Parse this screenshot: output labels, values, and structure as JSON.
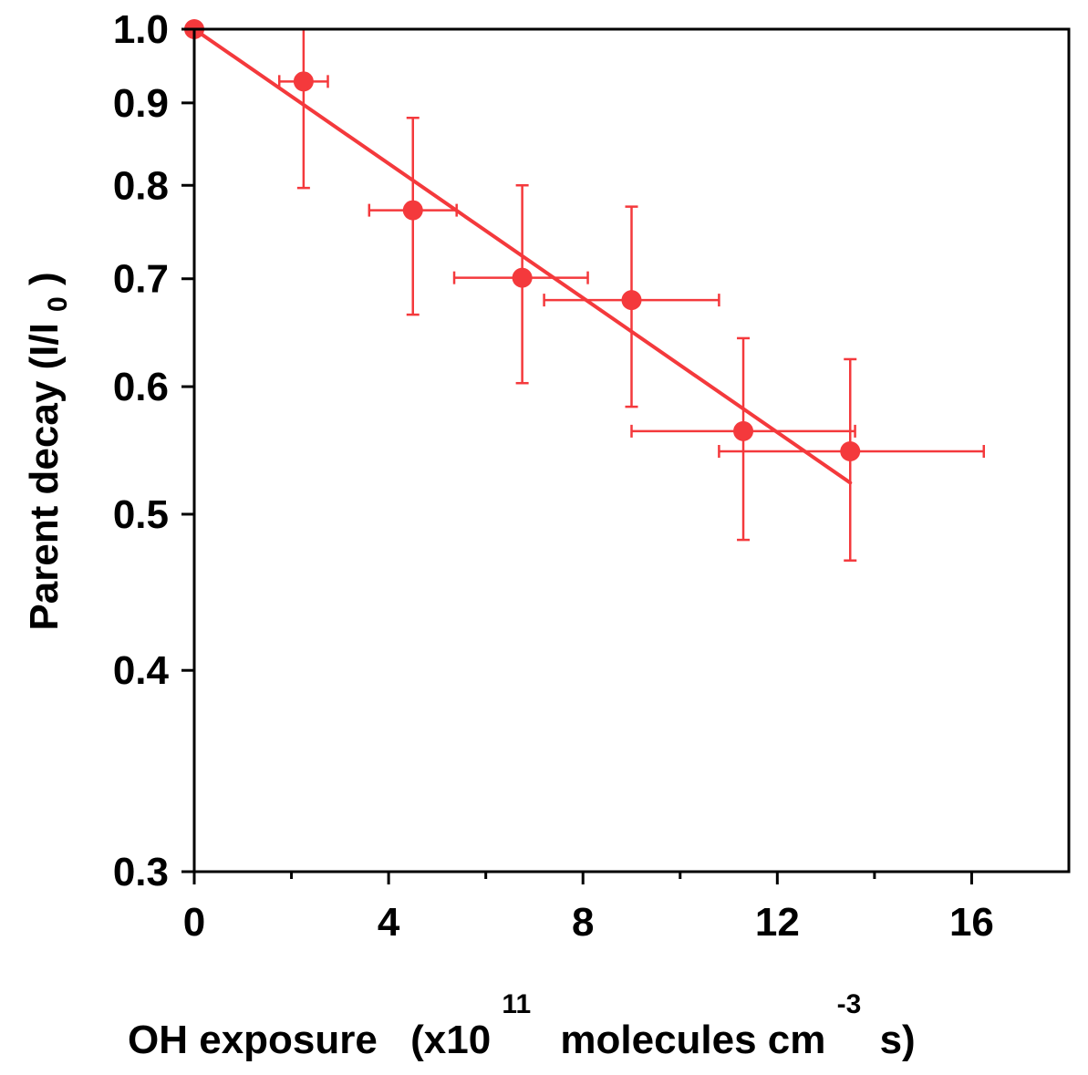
{
  "chart_data": {
    "type": "scatter",
    "title": "",
    "xlabel": {
      "main": "OH exposure",
      "unit_prefix": "(x10",
      "exponent": "11",
      "unit_mid": "molecules cm",
      "unit_exponent": "-3",
      "unit_suffix": "s)"
    },
    "ylabel": {
      "main": "Parent decay (I/I",
      "subscript": "0",
      "suffix": ")"
    },
    "x_scale": "linear",
    "y_scale": "log",
    "xlim": [
      0,
      18
    ],
    "ylim": [
      0.3,
      1.0
    ],
    "x_ticks": [
      0,
      4,
      8,
      12,
      16
    ],
    "x_tick_labels": [
      "0",
      "4",
      "8",
      "12",
      "16"
    ],
    "x_minor_ticks": [
      2,
      6,
      10,
      14
    ],
    "y_ticks": [
      0.3,
      0.4,
      0.5,
      0.6,
      0.7,
      0.8,
      0.9,
      1.0
    ],
    "y_tick_labels": [
      "0.3",
      "0.4",
      "0.5",
      "0.6",
      "0.7",
      "0.8",
      "0.9",
      "1.0"
    ],
    "grid": false,
    "legend": "none",
    "color": "#f4393c",
    "points": [
      {
        "x": 0.0,
        "y": 1.0,
        "xerr_low": 0.0,
        "xerr_high": 0.0,
        "y_low": 1.0,
        "y_high": 1.0
      },
      {
        "x": 2.25,
        "y": 0.928,
        "xerr_low": 0.5,
        "xerr_high": 0.5,
        "y_low": 0.797,
        "y_high": 1.0
      },
      {
        "x": 4.5,
        "y": 0.772,
        "xerr_low": 0.9,
        "xerr_high": 0.9,
        "y_low": 0.665,
        "y_high": 0.881
      },
      {
        "x": 6.75,
        "y": 0.701,
        "xerr_low": 1.4,
        "xerr_high": 1.35,
        "y_low": 0.603,
        "y_high": 0.8
      },
      {
        "x": 9.0,
        "y": 0.679,
        "xerr_low": 1.8,
        "xerr_high": 1.8,
        "y_low": 0.583,
        "y_high": 0.776
      },
      {
        "x": 11.3,
        "y": 0.563,
        "xerr_low": 2.3,
        "xerr_high": 2.3,
        "y_low": 0.482,
        "y_high": 0.643
      },
      {
        "x": 13.5,
        "y": 0.547,
        "xerr_low": 2.7,
        "xerr_high": 2.75,
        "y_low": 0.468,
        "y_high": 0.624
      }
    ],
    "fit_line": {
      "x": [
        0,
        13.5
      ],
      "y": [
        1.0,
        0.523
      ]
    }
  }
}
